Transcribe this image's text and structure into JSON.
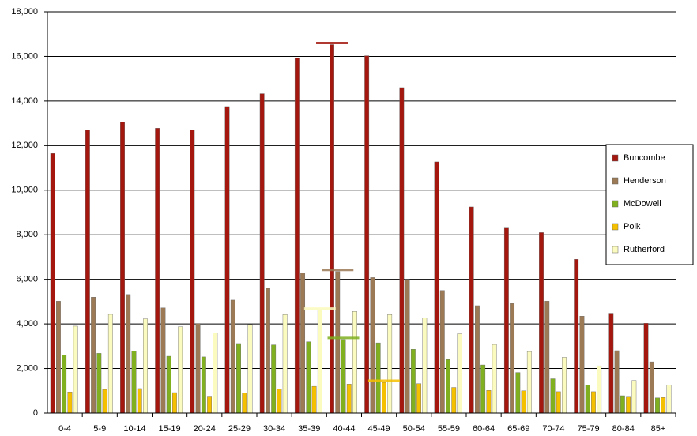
{
  "chart_data": {
    "type": "bar",
    "categories": [
      "0-4",
      "5-9",
      "10-14",
      "15-19",
      "20-24",
      "25-29",
      "30-34",
      "35-39",
      "40-44",
      "45-49",
      "50-54",
      "55-59",
      "60-64",
      "65-69",
      "70-74",
      "75-79",
      "80-84",
      "85+"
    ],
    "series": [
      {
        "name": "Buncombe",
        "color": "#a3170f",
        "values": [
          11650,
          12700,
          13050,
          12780,
          12700,
          13750,
          14330,
          15930,
          16530,
          16030,
          14600,
          11270,
          9250,
          8300,
          8100,
          6900,
          4480,
          4030
        ]
      },
      {
        "name": "Henderson",
        "color": "#9c7a55",
        "values": [
          5020,
          5200,
          5320,
          4720,
          4020,
          5070,
          5600,
          6280,
          6350,
          6080,
          6000,
          5500,
          4820,
          4920,
          5020,
          4350,
          2800,
          2300
        ]
      },
      {
        "name": "McDowell",
        "color": "#80b020",
        "values": [
          2600,
          2680,
          2780,
          2550,
          2520,
          3120,
          3060,
          3200,
          3300,
          3150,
          2860,
          2400,
          2160,
          1820,
          1540,
          1260,
          780,
          680
        ]
      },
      {
        "name": "Polk",
        "color": "#f5c000",
        "values": [
          950,
          1060,
          1100,
          920,
          760,
          900,
          1080,
          1200,
          1300,
          1380,
          1320,
          1150,
          1020,
          1000,
          960,
          960,
          750,
          700
        ]
      },
      {
        "name": "Rutherford",
        "color": "#fbfbbf",
        "values": [
          3900,
          4430,
          4230,
          3870,
          3600,
          3980,
          4420,
          4620,
          4560,
          4420,
          4280,
          3560,
          3080,
          2760,
          2500,
          2120,
          1460,
          1250
        ]
      }
    ],
    "ylim": [
      0,
      18000
    ],
    "yticks": [
      0,
      {
        "value": 2000,
        "label": "2,000"
      },
      {
        "value": 4000,
        "label": "4,000"
      },
      {
        "value": 6000,
        "label": "6,000"
      },
      {
        "value": 8000,
        "label": "8,000"
      },
      {
        "value": 10000,
        "label": "10,000"
      },
      {
        "value": 12000,
        "label": "12,000"
      },
      {
        "value": 14000,
        "label": "14,000"
      },
      {
        "value": 16000,
        "label": "16,000"
      },
      {
        "value": 18000,
        "label": "18,000"
      }
    ],
    "grid": true,
    "legend": "right"
  }
}
